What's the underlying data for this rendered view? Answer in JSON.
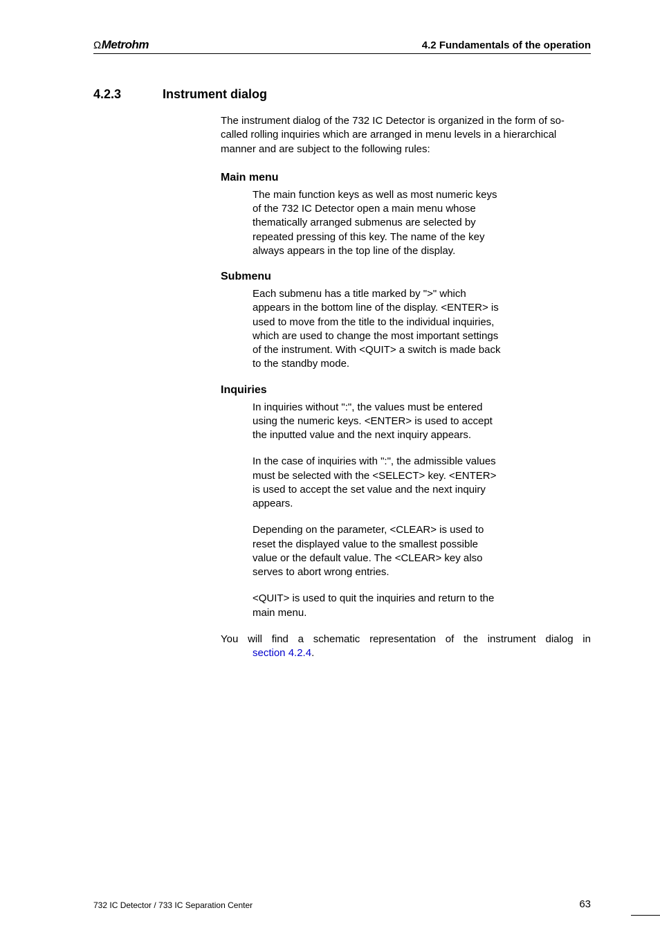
{
  "header": {
    "logo_symbol": "Ω",
    "logo_text": "Metrohm",
    "right": "4.2  Fundamentals of the operation"
  },
  "section": {
    "number": "4.2.3",
    "title": "Instrument dialog",
    "intro": "The instrument dialog of the 732 IC Detector is organized in the form of so-called rolling inquiries which are arranged in menu levels in a hierarchical manner and are subject to the following rules:"
  },
  "blocks": [
    {
      "heading": "Main menu",
      "paras": [
        "The main function keys as well as most numeric keys of the 732 IC Detector open a main menu whose thematically arranged submenus are selected by repeated pressing of this key. The name of the key always appears in the top line of the display."
      ]
    },
    {
      "heading": "Submenu",
      "paras": [
        "Each submenu has a title marked by \">\" which appears in the bottom line of the display. <ENTER> is used to move from the title to the individual inquiries, which are used to change the most important settings of the instrument. With <QUIT> a switch is made back to the standby mode."
      ]
    },
    {
      "heading": "Inquiries",
      "paras": [
        "In inquiries without \":\", the values must be entered using the numeric keys. <ENTER> is used to accept the inputted value and the next inquiry appears.",
        "In the case of inquiries with \":\", the admissible values must be selected with the <SELECT> key. <ENTER> is used to accept the set value and the next inquiry appears.",
        "Depending on the parameter, <CLEAR> is used to reset the displayed value to the smallest possible value or the default value. The <CLEAR> key also serves to abort wrong entries.",
        "<QUIT> is used to quit the inquiries and return to the main menu."
      ]
    }
  ],
  "closing": {
    "line1": "You will find a schematic representation of the instrument dialog in",
    "link_prefix": "section 4.2.4",
    "line2_suffix": "."
  },
  "footer": {
    "left": "732 IC Detector / 733 IC Separation Center",
    "page": "63"
  }
}
